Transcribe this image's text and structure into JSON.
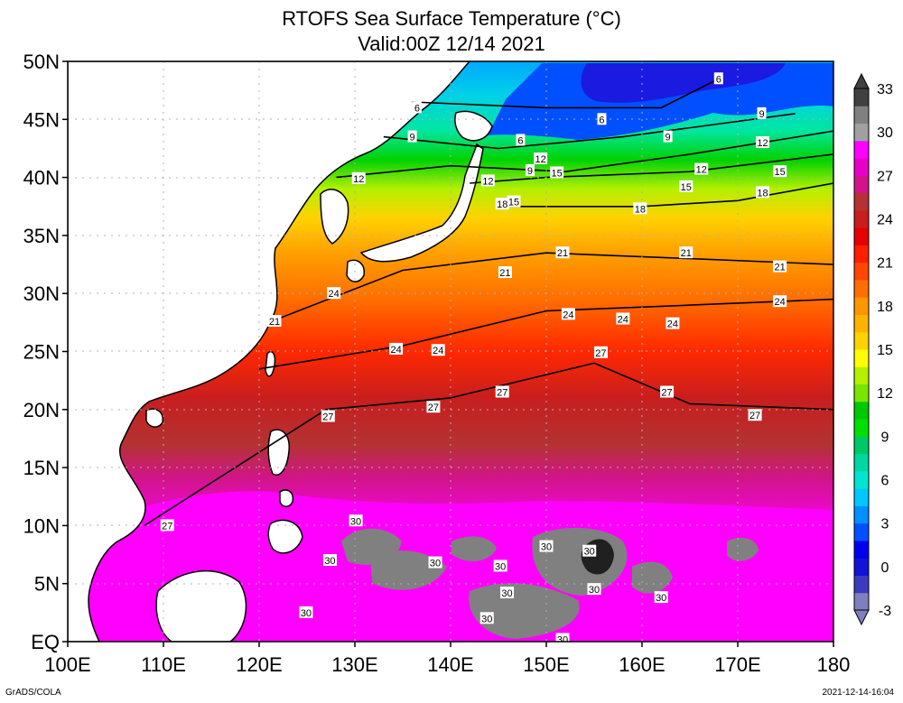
{
  "chart_data": {
    "type": "heatmap",
    "title": "RTOFS Sea Surface Temperature (°C)",
    "subtitle": "Valid:00Z 12/14 2021",
    "x_range": [
      100,
      180
    ],
    "y_range": [
      0,
      50
    ],
    "x_ticks": [
      {
        "value": 100,
        "label": "100E"
      },
      {
        "value": 110,
        "label": "110E"
      },
      {
        "value": 120,
        "label": "120E"
      },
      {
        "value": 130,
        "label": "130E"
      },
      {
        "value": 140,
        "label": "140E"
      },
      {
        "value": 150,
        "label": "150E"
      },
      {
        "value": 160,
        "label": "160E"
      },
      {
        "value": 170,
        "label": "170E"
      },
      {
        "value": 180,
        "label": "180"
      }
    ],
    "y_ticks": [
      {
        "value": 0,
        "label": "EQ"
      },
      {
        "value": 5,
        "label": "5N"
      },
      {
        "value": 10,
        "label": "10N"
      },
      {
        "value": 15,
        "label": "15N"
      },
      {
        "value": 20,
        "label": "20N"
      },
      {
        "value": 25,
        "label": "25N"
      },
      {
        "value": 30,
        "label": "30N"
      },
      {
        "value": 35,
        "label": "35N"
      },
      {
        "value": 40,
        "label": "40N"
      },
      {
        "value": 45,
        "label": "45N"
      },
      {
        "value": 50,
        "label": "50N"
      }
    ],
    "grid": true,
    "colorbar": {
      "placement": "right",
      "levels": [
        -3,
        0,
        3,
        6,
        9,
        12,
        15,
        18,
        21,
        24,
        27,
        30,
        33
      ],
      "labels": [
        "-3",
        "0",
        "3",
        "6",
        "9",
        "12",
        "15",
        "18",
        "21",
        "24",
        "27",
        "30",
        "33"
      ],
      "colors": [
        "#7f7fbf",
        "#3b3bbf",
        "#1212d8",
        "#0000f0",
        "#0050ff",
        "#0090ff",
        "#00c8ff",
        "#00e6d2",
        "#00d8a0",
        "#00c864",
        "#00e000",
        "#00c800",
        "#78e600",
        "#b4f000",
        "#ffff00",
        "#ffd200",
        "#ffb400",
        "#ff9600",
        "#ff6e00",
        "#ff4600",
        "#ff1e00",
        "#e60000",
        "#c81e1e",
        "#b43232",
        "#d2148c",
        "#e600c8",
        "#ff00ff",
        "#a0a0a0",
        "#808080",
        "#404040"
      ]
    },
    "contours": [
      {
        "value": 6,
        "label": "6",
        "lat": [
          46.5,
          46.0,
          46.0,
          48.5
        ],
        "lon": [
          136,
          150,
          162,
          168
        ]
      },
      {
        "value": 9,
        "label": "9",
        "lat": [
          43.5,
          42.5,
          43.5,
          45.5
        ],
        "lon": [
          133,
          145,
          158,
          176
        ]
      },
      {
        "value": 12,
        "label": "12",
        "lat": [
          40,
          41.0,
          40.5,
          42.0,
          44
        ],
        "lon": [
          128,
          140,
          152,
          165,
          180
        ]
      },
      {
        "value": 15,
        "label": "15",
        "lat": [
          39.5,
          40.0,
          40.5,
          42
        ],
        "lon": [
          142,
          150,
          165,
          180
        ]
      },
      {
        "value": 18,
        "label": "18",
        "lat": [
          37.5,
          37.5,
          38.0,
          39.5
        ],
        "lon": [
          145,
          160,
          170,
          180
        ]
      },
      {
        "value": 21,
        "label": "21",
        "lat": [
          27.5,
          32.0,
          33.5,
          33.0,
          32.5
        ],
        "lon": [
          121,
          135,
          150,
          165,
          180
        ]
      },
      {
        "value": 24,
        "label": "24",
        "lat": [
          23.5,
          25.5,
          28.5,
          29.0,
          29.5
        ],
        "lon": [
          120,
          135,
          150,
          165,
          180
        ]
      },
      {
        "value": 27,
        "label": "27",
        "lat": [
          10,
          20.0,
          21.0,
          24.0,
          20.5,
          20.0
        ],
        "lon": [
          108,
          127,
          140,
          155,
          165,
          180
        ]
      }
    ],
    "contour_labels": [
      {
        "text": "6",
        "lon": 136.5,
        "lat": 46.0
      },
      {
        "text": "6",
        "lon": 168.0,
        "lat": 48.5
      },
      {
        "text": "6",
        "lon": 147.3,
        "lat": 43.2
      },
      {
        "text": "6",
        "lon": 155.8,
        "lat": 45.0
      },
      {
        "text": "9",
        "lon": 136.0,
        "lat": 43.5
      },
      {
        "text": "9",
        "lon": 162.7,
        "lat": 43.5
      },
      {
        "text": "9",
        "lon": 172.5,
        "lat": 45.5
      },
      {
        "text": "9",
        "lon": 148.3,
        "lat": 40.6
      },
      {
        "text": "12",
        "lon": 130.4,
        "lat": 39.9
      },
      {
        "text": "12",
        "lon": 143.9,
        "lat": 39.7
      },
      {
        "text": "12",
        "lon": 149.4,
        "lat": 41.6
      },
      {
        "text": "12",
        "lon": 166.2,
        "lat": 40.7
      },
      {
        "text": "12",
        "lon": 172.6,
        "lat": 43.0
      },
      {
        "text": "15",
        "lon": 146.6,
        "lat": 37.9
      },
      {
        "text": "15",
        "lon": 151.1,
        "lat": 40.4
      },
      {
        "text": "15",
        "lon": 164.6,
        "lat": 39.2
      },
      {
        "text": "15",
        "lon": 174.4,
        "lat": 40.5
      },
      {
        "text": "18",
        "lon": 145.4,
        "lat": 37.7
      },
      {
        "text": "18",
        "lon": 159.8,
        "lat": 37.3
      },
      {
        "text": "18",
        "lon": 172.6,
        "lat": 38.7
      },
      {
        "text": "21",
        "lon": 151.7,
        "lat": 33.5
      },
      {
        "text": "21",
        "lon": 164.6,
        "lat": 33.5
      },
      {
        "text": "21",
        "lon": 174.4,
        "lat": 32.3
      },
      {
        "text": "21",
        "lon": 145.7,
        "lat": 31.8
      },
      {
        "text": "21",
        "lon": 121.6,
        "lat": 27.6
      },
      {
        "text": "24",
        "lon": 127.8,
        "lat": 30.0
      },
      {
        "text": "24",
        "lon": 174.4,
        "lat": 29.3
      },
      {
        "text": "24",
        "lon": 152.3,
        "lat": 28.2
      },
      {
        "text": "24",
        "lon": 158.0,
        "lat": 27.8
      },
      {
        "text": "24",
        "lon": 163.2,
        "lat": 27.4
      },
      {
        "text": "24",
        "lon": 134.3,
        "lat": 25.2
      },
      {
        "text": "24",
        "lon": 138.7,
        "lat": 25.1
      },
      {
        "text": "27",
        "lon": 155.7,
        "lat": 24.9
      },
      {
        "text": "27",
        "lon": 145.4,
        "lat": 21.5
      },
      {
        "text": "27",
        "lon": 162.6,
        "lat": 21.5
      },
      {
        "text": "27",
        "lon": 171.8,
        "lat": 19.5
      },
      {
        "text": "27",
        "lon": 138.2,
        "lat": 20.2
      },
      {
        "text": "27",
        "lon": 127.2,
        "lat": 19.4
      },
      {
        "text": "27",
        "lon": 110.4,
        "lat": 10.0
      },
      {
        "text": "30",
        "lon": 130.1,
        "lat": 10.4
      },
      {
        "text": "30",
        "lon": 127.4,
        "lat": 7.0
      },
      {
        "text": "30",
        "lon": 138.4,
        "lat": 6.8
      },
      {
        "text": "30",
        "lon": 145.2,
        "lat": 6.5
      },
      {
        "text": "30",
        "lon": 150.0,
        "lat": 8.2
      },
      {
        "text": "30",
        "lon": 154.5,
        "lat": 7.8
      },
      {
        "text": "30",
        "lon": 145.9,
        "lat": 4.2
      },
      {
        "text": "30",
        "lon": 155.0,
        "lat": 4.5
      },
      {
        "text": "30",
        "lon": 162.0,
        "lat": 3.8
      },
      {
        "text": "30",
        "lon": 124.9,
        "lat": 2.5
      },
      {
        "text": "30",
        "lon": 143.8,
        "lat": 2.0
      },
      {
        "text": "30",
        "lon": 151.7,
        "lat": 0.2
      }
    ]
  },
  "footer": {
    "credit": "GrADS/COLA",
    "timestamp": "2021-12-14-16:04"
  }
}
